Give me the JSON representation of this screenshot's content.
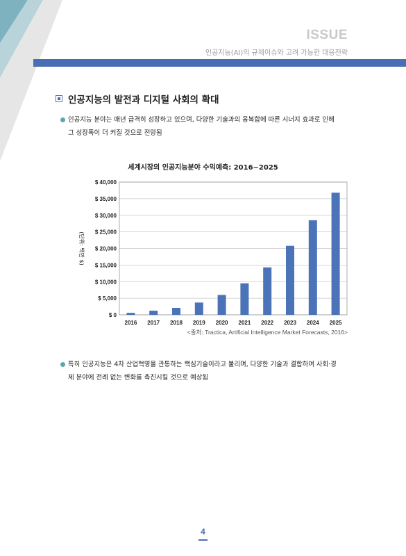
{
  "header": {
    "section_tag": "ISSUE",
    "subtitle": "인공지능(AI)의 규제이슈와 고려 가능한 대응전략",
    "accent_color": "#4a6eb3",
    "corner_colors": [
      "#7fb2bf",
      "#b9d3da",
      "#e4e4e4"
    ]
  },
  "section": {
    "heading": "인공지능의 발전과 디지털 사회의 확대"
  },
  "bullets": [
    {
      "line1": "인공지능 분야는 매년 급격히 성장하고 있으며, 다양한 기술과의 융복합에 따른 시너지 효과로 인해",
      "line2": "그 성장폭이 더 커질 것으로 전망됨"
    },
    {
      "line1": "특히 인공지능은 4차 산업혁명을 관통하는 핵심기술이라고 불리며, 다양한 기술과 결합하여 사회·경",
      "line2": "제 분야에 전례 없는 변화를 촉진시킬 것으로 예상됨"
    }
  ],
  "chart_data": {
    "type": "bar",
    "title": "세계시장의 인공지능분야 수익예측: 2016~2025",
    "ylabel": "(단위: 백만 $)",
    "xlabel": "",
    "categories": [
      "2016",
      "2017",
      "2018",
      "2019",
      "2020",
      "2021",
      "2022",
      "2023",
      "2024",
      "2025"
    ],
    "values": [
      600,
      1250,
      2100,
      3700,
      6000,
      9500,
      14300,
      20800,
      28500,
      36800
    ],
    "ylim": [
      0,
      40000
    ],
    "yticks": [
      0,
      5000,
      10000,
      15000,
      20000,
      25000,
      30000,
      35000,
      40000
    ],
    "ytick_labels": [
      "$ 0",
      "$ 5,000",
      "$ 10,000",
      "$ 15,000",
      "$ 20,000",
      "$ 25,000",
      "$ 30,000",
      "$ 35,000",
      "$ 40,000"
    ],
    "grid": true,
    "bar_color": "#4a73b8",
    "source": "<출처: Tractica, Artificial Intelligence Market Forecasts, 2016>"
  },
  "footer": {
    "page_number": "4"
  }
}
